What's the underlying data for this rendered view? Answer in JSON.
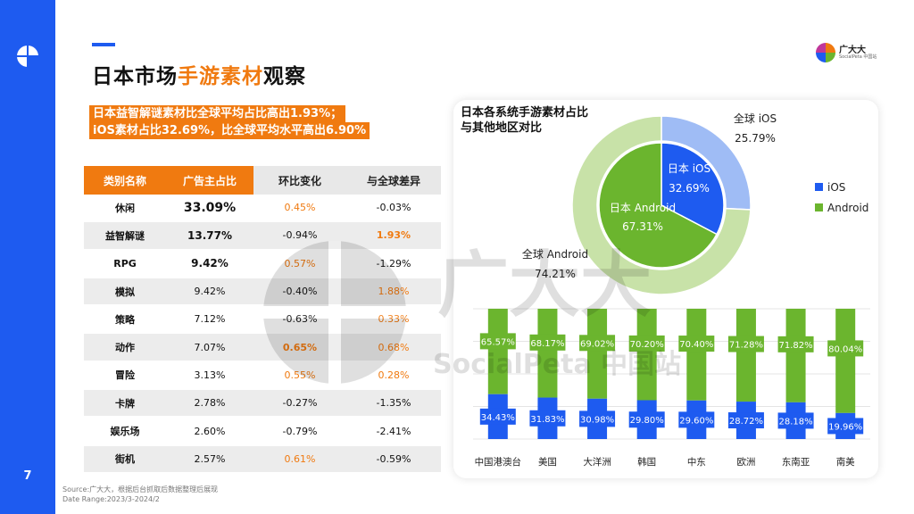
{
  "page": {
    "number": "7",
    "title_prefix": "日本市场",
    "title_highlight": "手游素材",
    "title_suffix": "观察",
    "highlight_line1": "日本益智解谜素材比全球平均占比高出1.93%；",
    "highlight_line2": "iOS素材占比32.69%，比全球平均水平高出6.90%",
    "brand_name": "广大大",
    "brand_sub": "SocialPeta 中国站",
    "source_line1": "Source:广大大，根据后台抓取后数据整理后展现",
    "source_line2": "Date Range:2023/3-2024/2",
    "watermark_text1": "广大大",
    "watermark_text2": "SocialPeta 中国站"
  },
  "colors": {
    "blue": "#1e5bf0",
    "orange": "#f07a10",
    "green": "#6bb52e",
    "light_blue": "#9fbcf5",
    "light_green": "#c8e2a8"
  },
  "table": {
    "headers": [
      "类别名称",
      "广告主占比",
      "环比变化",
      "与全球差异"
    ],
    "rows": [
      {
        "name": "休闲",
        "share": "33.09%",
        "chg": "0.45%",
        "diff": "-0.03%",
        "share_style": "big",
        "chg_orange": true,
        "chg_bold": false,
        "diff_orange": false,
        "diff_bold": false
      },
      {
        "name": "益智解谜",
        "share": "13.77%",
        "chg": "-0.94%",
        "diff": "1.93%",
        "share_style": "mid",
        "chg_orange": false,
        "chg_bold": false,
        "diff_orange": true,
        "diff_bold": true
      },
      {
        "name": "RPG",
        "share": "9.42%",
        "chg": "0.57%",
        "diff": "-1.29%",
        "share_style": "mid",
        "chg_orange": true,
        "chg_bold": false,
        "diff_orange": false,
        "diff_bold": false
      },
      {
        "name": "模拟",
        "share": "9.42%",
        "chg": "-0.40%",
        "diff": "1.88%",
        "share_style": "",
        "chg_orange": false,
        "chg_bold": false,
        "diff_orange": true,
        "diff_bold": false
      },
      {
        "name": "策略",
        "share": "7.12%",
        "chg": "-0.63%",
        "diff": "0.33%",
        "share_style": "",
        "chg_orange": false,
        "chg_bold": false,
        "diff_orange": true,
        "diff_bold": false
      },
      {
        "name": "动作",
        "share": "7.07%",
        "chg": "0.65%",
        "diff": "0.68%",
        "share_style": "",
        "chg_orange": true,
        "chg_bold": true,
        "diff_orange": true,
        "diff_bold": false
      },
      {
        "name": "冒险",
        "share": "3.13%",
        "chg": "0.55%",
        "diff": "0.28%",
        "share_style": "",
        "chg_orange": true,
        "chg_bold": false,
        "diff_orange": true,
        "diff_bold": false
      },
      {
        "name": "卡牌",
        "share": "2.78%",
        "chg": "-0.27%",
        "diff": "-1.35%",
        "share_style": "",
        "chg_orange": false,
        "chg_bold": false,
        "diff_orange": false,
        "diff_bold": false
      },
      {
        "name": "娱乐场",
        "share": "2.60%",
        "chg": "-0.79%",
        "diff": "-2.41%",
        "share_style": "",
        "chg_orange": false,
        "chg_bold": false,
        "diff_orange": false,
        "diff_bold": false
      },
      {
        "name": "街机",
        "share": "2.57%",
        "chg": "0.61%",
        "diff": "-0.59%",
        "share_style": "",
        "chg_orange": true,
        "chg_bold": false,
        "diff_orange": false,
        "diff_bold": false
      }
    ]
  },
  "chart_data": [
    {
      "type": "pie",
      "title": "日本各系统手游素材占比与其他地区对比",
      "title_line1": "日本各系统手游素材占比",
      "title_line2": "与其他地区对比",
      "legend": [
        "iOS",
        "Android"
      ],
      "legend_position": "right",
      "rings": [
        {
          "name": "全球",
          "slices": [
            {
              "label": "全球 iOS",
              "value": 25.79,
              "value_text": "25.79%",
              "series": "iOS"
            },
            {
              "label": "全球 Android",
              "value": 74.21,
              "value_text": "74.21%",
              "series": "Android"
            }
          ]
        },
        {
          "name": "日本",
          "slices": [
            {
              "label": "日本 iOS",
              "value": 32.69,
              "value_text": "32.69%",
              "series": "iOS"
            },
            {
              "label": "日本 Android",
              "value": 67.31,
              "value_text": "67.31%",
              "series": "Android"
            }
          ]
        }
      ]
    },
    {
      "type": "bar",
      "stacked": true,
      "categories": [
        "中国港澳台",
        "美国",
        "大洋洲",
        "韩国",
        "中东",
        "欧洲",
        "东南亚",
        "南美"
      ],
      "series": [
        {
          "name": "iOS",
          "values": [
            34.43,
            31.83,
            30.98,
            29.8,
            29.6,
            28.72,
            28.18,
            19.96
          ],
          "labels": [
            "34.43%",
            "31.83%",
            "30.98%",
            "29.80%",
            "29.60%",
            "28.72%",
            "28.18%",
            "19.96%"
          ]
        },
        {
          "name": "Android",
          "values": [
            65.57,
            68.17,
            69.02,
            70.2,
            70.4,
            71.28,
            71.82,
            80.04
          ],
          "labels": [
            "65.57%",
            "68.17%",
            "69.02%",
            "70.20%",
            "70.40%",
            "71.28%",
            "71.82%",
            "80.04%"
          ]
        }
      ],
      "ylim": [
        0,
        100
      ],
      "grid": true
    }
  ]
}
